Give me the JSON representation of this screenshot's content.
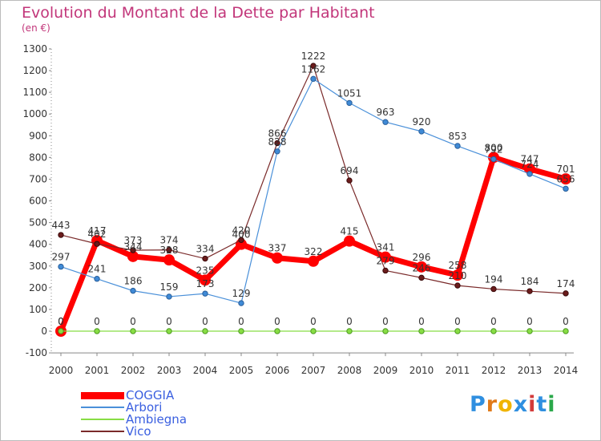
{
  "title": "Evolution du Montant de la Dette par Habitant",
  "subtitle": "(en €)",
  "logo": {
    "text": "Proxiti",
    "colors": [
      "#2f8fe0",
      "#e07a1a",
      "#f0b400",
      "#2f8fe0",
      "#d33a3a",
      "#2f8fe0",
      "#2aa84a"
    ]
  },
  "chart_data": {
    "type": "line",
    "x": [
      "2000",
      "2001",
      "2002",
      "2003",
      "2004",
      "2005",
      "2006",
      "2007",
      "2008",
      "2009",
      "2010",
      "2011",
      "2012",
      "2013",
      "2014"
    ],
    "ylim": [
      -100,
      1300
    ],
    "yticks": [
      -100,
      0,
      100,
      200,
      300,
      400,
      500,
      600,
      700,
      800,
      900,
      1000,
      1100,
      1200,
      1300
    ],
    "grid": false,
    "legend_position": "bottom-left",
    "series": [
      {
        "name": "COGGIA",
        "color": "#ff0000",
        "values": [
          0,
          417,
          344,
          328,
          235,
          400,
          337,
          322,
          415,
          341,
          296,
          258,
          800,
          747,
          701
        ]
      },
      {
        "name": "Arbori",
        "color": "#4a90d9",
        "values": [
          297,
          241,
          186,
          159,
          173,
          129,
          828,
          1162,
          1051,
          963,
          920,
          853,
          792,
          724,
          656
        ]
      },
      {
        "name": "Ambiegna",
        "color": "#88dd44",
        "values": [
          0,
          0,
          0,
          0,
          0,
          0,
          0,
          0,
          0,
          0,
          0,
          0,
          0,
          0,
          0
        ]
      },
      {
        "name": "Vico",
        "color": "#7a2a2a",
        "values": [
          443,
          402,
          373,
          374,
          334,
          420,
          866,
          1222,
          694,
          279,
          246,
          210,
          194,
          184,
          174
        ]
      }
    ]
  }
}
